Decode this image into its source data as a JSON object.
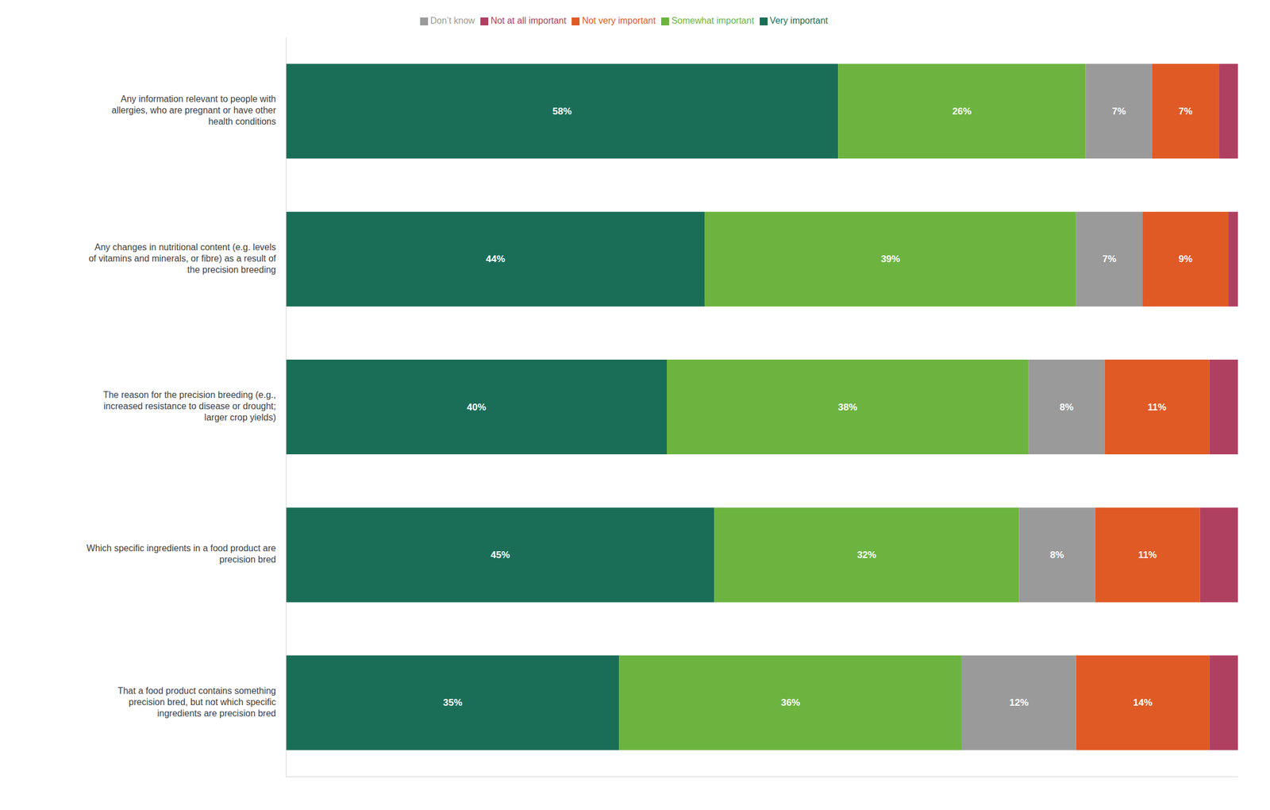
{
  "chart_data": {
    "type": "bar",
    "orientation": "horizontal",
    "stacked": true,
    "data_labels": true,
    "legend": "top",
    "grid": false,
    "tick_labels": "y",
    "xlim": [
      0,
      100
    ],
    "categories": [
      "Any information relevant to people with\nallergies, who are pregnant or have other\nhealth conditions",
      "Any changes in nutritional content (e.g. levels\nof vitamins and minerals, or fibre) as a result of\nthe precision breeding",
      "The reason for the precision breeding (e.g.,\nincreased resistance to disease or drought;\nlarger crop yields)",
      "Which specific ingredients in a food product are\nprecision bred",
      "That a food product contains something\nprecision bred, but not which specific\ningredients are precision bred"
    ],
    "series": [
      {
        "name": "Very important",
        "color": "#1a6e58",
        "values": [
          58,
          44,
          40,
          45,
          35
        ],
        "value_labels": [
          "58%",
          "44%",
          "40%",
          "45%",
          "35%"
        ]
      },
      {
        "name": "Somewhat important",
        "color": "#6cb43f",
        "values": [
          26,
          39,
          38,
          32,
          36
        ],
        "value_labels": [
          "26%",
          "39%",
          "38%",
          "32%",
          "36%"
        ]
      },
      {
        "name": "Don’t know",
        "color": "#9a9a9a",
        "values": [
          7,
          7,
          8,
          8,
          12
        ],
        "value_labels": [
          "7%",
          "7%",
          "8%",
          "8%",
          "12%"
        ]
      },
      {
        "name": "Not very important",
        "color": "#e05a25",
        "values": [
          7,
          9,
          11,
          11,
          14
        ],
        "value_labels": [
          "7%",
          "9%",
          "11%",
          "11%",
          "14%"
        ]
      },
      {
        "name": "Not at all important",
        "color": "#b04060",
        "values": [
          2,
          1,
          3,
          4,
          3
        ],
        "value_labels": [
          null,
          null,
          null,
          null,
          null
        ]
      }
    ]
  }
}
